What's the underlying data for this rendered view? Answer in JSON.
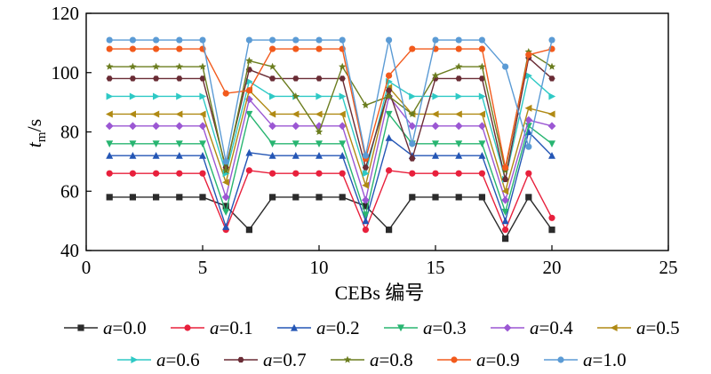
{
  "chart_data": {
    "type": "line",
    "x": [
      1,
      2,
      3,
      4,
      5,
      6,
      7,
      8,
      9,
      10,
      11,
      12,
      13,
      14,
      15,
      16,
      17,
      18,
      19,
      20
    ],
    "xlabel": "CEBs 编号",
    "ylabel_main": "t",
    "ylabel_sub": "m",
    "ylabel_unit": "/s",
    "xlim": [
      0,
      25
    ],
    "ylim": [
      40,
      120
    ],
    "xticks": [
      "0",
      "5",
      "10",
      "15",
      "20",
      "25"
    ],
    "yticks": [
      "40",
      "60",
      "80",
      "100",
      "120"
    ],
    "grid": false,
    "legend_position": "bottom",
    "series": [
      {
        "name": "a=0.0",
        "param": "a",
        "value_text": "=0.0",
        "color": "#2b2b2b",
        "marker": "square",
        "values": [
          58,
          58,
          58,
          58,
          58,
          55,
          47,
          58,
          58,
          58,
          58,
          55,
          47,
          58,
          58,
          58,
          58,
          44,
          58,
          47
        ]
      },
      {
        "name": "a=0.1",
        "param": "a",
        "value_text": "=0.1",
        "color": "#e8203c",
        "marker": "circle",
        "values": [
          66,
          66,
          66,
          66,
          66,
          47,
          67,
          66,
          66,
          66,
          66,
          47,
          67,
          66,
          66,
          66,
          66,
          47,
          66,
          51
        ]
      },
      {
        "name": "a=0.2",
        "param": "a",
        "value_text": "=0.2",
        "color": "#2456b5",
        "marker": "triangle-up",
        "values": [
          72,
          72,
          72,
          72,
          72,
          48,
          73,
          72,
          72,
          72,
          72,
          50,
          78,
          72,
          72,
          72,
          72,
          50,
          80,
          72
        ]
      },
      {
        "name": "a=0.3",
        "param": "a",
        "value_text": "=0.3",
        "color": "#28b571",
        "marker": "triangle-down",
        "values": [
          76,
          76,
          76,
          76,
          76,
          53,
          86,
          76,
          76,
          76,
          76,
          52,
          86,
          76,
          76,
          76,
          76,
          53,
          82,
          76
        ]
      },
      {
        "name": "a=0.4",
        "param": "a",
        "value_text": "=0.4",
        "color": "#9b57d3",
        "marker": "diamond",
        "values": [
          82,
          82,
          82,
          82,
          82,
          58,
          91,
          82,
          82,
          82,
          82,
          57,
          92,
          82,
          82,
          82,
          82,
          57,
          84,
          82
        ]
      },
      {
        "name": "a=0.5",
        "param": "a",
        "value_text": "=0.5",
        "color": "#b08a14",
        "marker": "triangle-left",
        "values": [
          86,
          86,
          86,
          86,
          86,
          63,
          94,
          86,
          86,
          86,
          86,
          62,
          95,
          86,
          86,
          86,
          86,
          60,
          88,
          86
        ]
      },
      {
        "name": "a=0.6",
        "param": "a",
        "value_text": "=0.6",
        "color": "#2ec9c5",
        "marker": "triangle-right",
        "values": [
          92,
          92,
          92,
          92,
          92,
          66,
          97,
          92,
          92,
          92,
          92,
          66,
          97,
          92,
          92,
          92,
          92,
          64,
          99,
          92
        ]
      },
      {
        "name": "a=0.7",
        "param": "a",
        "value_text": "=0.7",
        "color": "#6a2c35",
        "marker": "hexagon",
        "values": [
          98,
          98,
          98,
          98,
          98,
          68,
          101,
          98,
          98,
          98,
          98,
          68,
          94,
          71,
          98,
          98,
          98,
          64,
          105,
          98
        ]
      },
      {
        "name": "a=0.8",
        "param": "a",
        "value_text": "=0.8",
        "color": "#6b7d1f",
        "marker": "star",
        "values": [
          102,
          102,
          102,
          102,
          102,
          67,
          104,
          102,
          92,
          80,
          102,
          89,
          92,
          86,
          99,
          102,
          102,
          67,
          107,
          102
        ]
      },
      {
        "name": "a=0.9",
        "param": "a",
        "value_text": "=0.9",
        "color": "#f25a1c",
        "marker": "circle",
        "values": [
          108,
          108,
          108,
          108,
          108,
          93,
          94,
          108,
          108,
          108,
          108,
          71,
          99,
          108,
          108,
          108,
          108,
          68,
          106,
          108
        ]
      },
      {
        "name": "a=1.0",
        "param": "a",
        "value_text": "=1.0",
        "color": "#5b9bd5",
        "marker": "circle",
        "values": [
          111,
          111,
          111,
          111,
          111,
          70,
          111,
          111,
          111,
          111,
          111,
          72,
          111,
          76,
          111,
          111,
          111,
          102,
          75,
          111
        ]
      }
    ]
  }
}
